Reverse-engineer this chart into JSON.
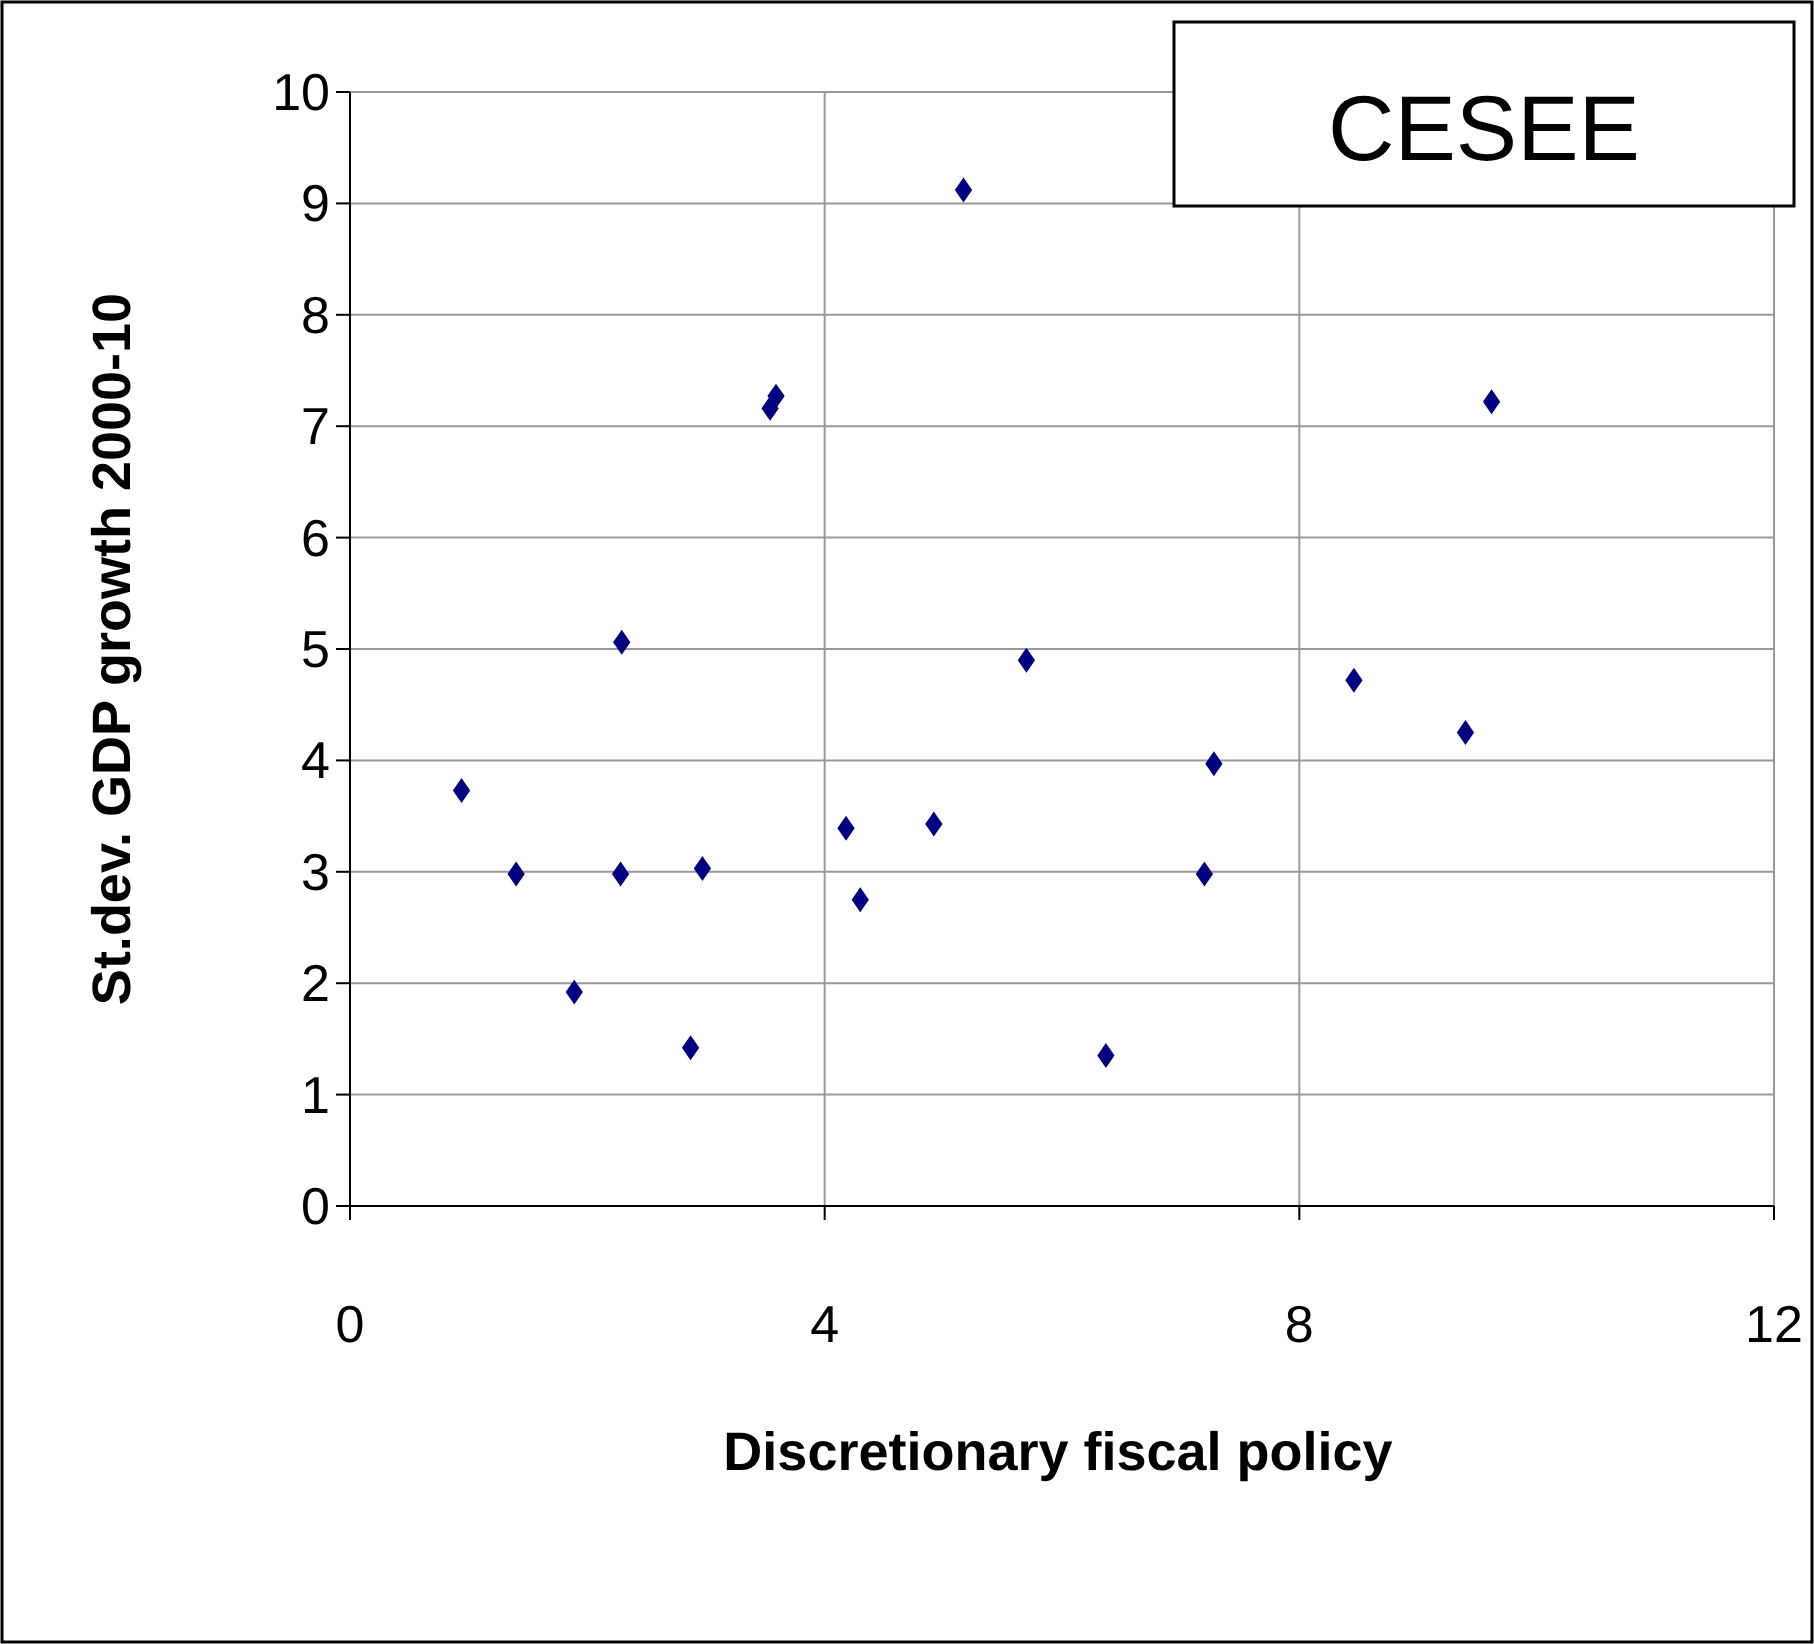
{
  "chart_data": {
    "type": "scatter",
    "title": "CESEE",
    "xlabel": "Discretionary fiscal policy",
    "ylabel": "St.dev. GDP growth 2000-10",
    "x": [
      0.94,
      1.4,
      1.89,
      2.29,
      2.28,
      2.87,
      2.97,
      3.54,
      3.59,
      4.18,
      4.3,
      4.92,
      5.17,
      5.7,
      6.37,
      7.2,
      7.28,
      8.46,
      9.4,
      9.62
    ],
    "series": [
      {
        "color": "#000080",
        "values": [
          3.73,
          2.98,
          1.92,
          5.06,
          2.98,
          1.42,
          3.03,
          7.16,
          7.27,
          3.39,
          2.75,
          3.43,
          9.12,
          4.9,
          1.35,
          2.98,
          3.97,
          4.72,
          4.25,
          7.22
        ]
      }
    ],
    "xlim": [
      0,
      12
    ],
    "xticks": [
      0,
      4,
      8,
      12
    ],
    "ylim": [
      0,
      10
    ],
    "yticks": [
      0,
      1,
      2,
      3,
      4,
      5,
      6,
      7,
      8,
      9,
      10
    ],
    "grid": true,
    "marker": "diamond"
  }
}
